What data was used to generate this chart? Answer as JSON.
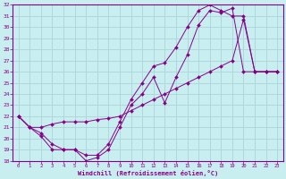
{
  "xlabel": "Windchill (Refroidissement éolien,°C)",
  "bg_color": "#c8eef0",
  "grid_color": "#aed8dc",
  "line_color": "#880088",
  "xlim": [
    -0.5,
    23.5
  ],
  "ylim": [
    18,
    32
  ],
  "xticks": [
    0,
    1,
    2,
    3,
    4,
    5,
    6,
    7,
    8,
    9,
    10,
    11,
    12,
    13,
    14,
    15,
    16,
    17,
    18,
    19,
    20,
    21,
    22,
    23
  ],
  "yticks": [
    18,
    19,
    20,
    21,
    22,
    23,
    24,
    25,
    26,
    27,
    28,
    29,
    30,
    31,
    32
  ],
  "line1_x": [
    0,
    1,
    2,
    3,
    4,
    5,
    6,
    7,
    8,
    9,
    10,
    11,
    12,
    13,
    14,
    15,
    16,
    17,
    18,
    19,
    20,
    21,
    22,
    23
  ],
  "line1_y": [
    22.0,
    21.0,
    20.2,
    19.0,
    19.0,
    19.0,
    18.0,
    18.3,
    19.0,
    21.0,
    23.0,
    24.0,
    25.5,
    23.2,
    25.5,
    27.5,
    30.2,
    31.5,
    31.3,
    31.7,
    26.0,
    26.0,
    26.0,
    26.0
  ],
  "line2_x": [
    0,
    1,
    2,
    3,
    4,
    5,
    6,
    7,
    8,
    9,
    10,
    11,
    12,
    13,
    14,
    15,
    16,
    17,
    18,
    19,
    20,
    21,
    22,
    23
  ],
  "line2_y": [
    22.0,
    21.0,
    20.5,
    19.5,
    19.0,
    19.0,
    18.5,
    18.5,
    19.5,
    21.5,
    23.5,
    25.0,
    26.5,
    26.8,
    28.2,
    30.0,
    31.5,
    32.0,
    31.5,
    31.0,
    31.0,
    26.0,
    26.0,
    26.0
  ],
  "line3_x": [
    0,
    1,
    2,
    3,
    4,
    5,
    6,
    7,
    8,
    9,
    10,
    11,
    12,
    13,
    14,
    15,
    16,
    17,
    18,
    19,
    20,
    21,
    22,
    23
  ],
  "line3_y": [
    22.0,
    21.0,
    21.0,
    21.3,
    21.5,
    21.5,
    21.5,
    21.7,
    21.8,
    22.0,
    22.5,
    23.0,
    23.5,
    24.0,
    24.5,
    25.0,
    25.5,
    26.0,
    26.5,
    27.0,
    30.7,
    26.0,
    26.0,
    26.0
  ]
}
